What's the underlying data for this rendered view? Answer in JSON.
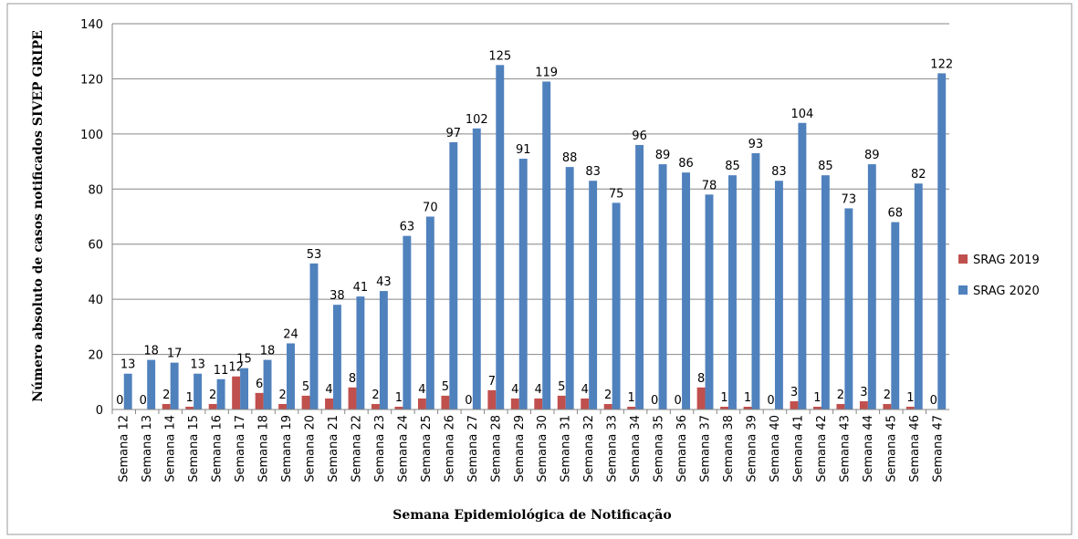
{
  "chart_data": {
    "type": "bar",
    "x_label": "Semana Epidemiológica de Notificação",
    "y_label": "Número absoluto de casos notificados SIVEP GRIPE",
    "categories": [
      "Semana 12",
      "Semana 13",
      "Semana 14",
      "Semana 15",
      "Semana 16",
      "Semana 17",
      "Semana 18",
      "Semana 19",
      "Semana 20",
      "Semana 21",
      "Semana 22",
      "Semana 23",
      "Semana 24",
      "Semana 25",
      "Semana 26",
      "Semana 27",
      "Semana 28",
      "Semana 29",
      "Semana 30",
      "Semana 31",
      "Semana 32",
      "Semana 33",
      "Semana 34",
      "Semana 35",
      "Semana 36",
      "Semana 37",
      "Semana 38",
      "Semana 39",
      "Semana 40",
      "Semana 41",
      "Semana 42",
      "Semana 43",
      "Semana 44",
      "Semana 45",
      "Semana 46",
      "Semana 47"
    ],
    "series": [
      {
        "name": "SRAG 2019",
        "color": "#c0504d",
        "values": [
          0,
          0,
          2,
          1,
          2,
          12,
          6,
          2,
          5,
          4,
          8,
          2,
          1,
          4,
          5,
          0,
          7,
          4,
          4,
          5,
          4,
          2,
          1,
          0,
          0,
          8,
          1,
          1,
          0,
          3,
          1,
          2,
          3,
          2,
          1,
          0
        ]
      },
      {
        "name": "SRAG 2020",
        "color": "#4f81bd",
        "values": [
          13,
          18,
          17,
          13,
          11,
          15,
          18,
          24,
          53,
          38,
          41,
          43,
          63,
          70,
          97,
          102,
          125,
          91,
          119,
          88,
          83,
          75,
          96,
          89,
          86,
          78,
          85,
          93,
          83,
          104,
          85,
          73,
          89,
          68,
          82,
          122
        ]
      }
    ],
    "ylim": [
      0,
      140
    ],
    "yticks": [
      0,
      20,
      40,
      60,
      80,
      100,
      120,
      140
    ],
    "grid": true,
    "legend": "right"
  }
}
